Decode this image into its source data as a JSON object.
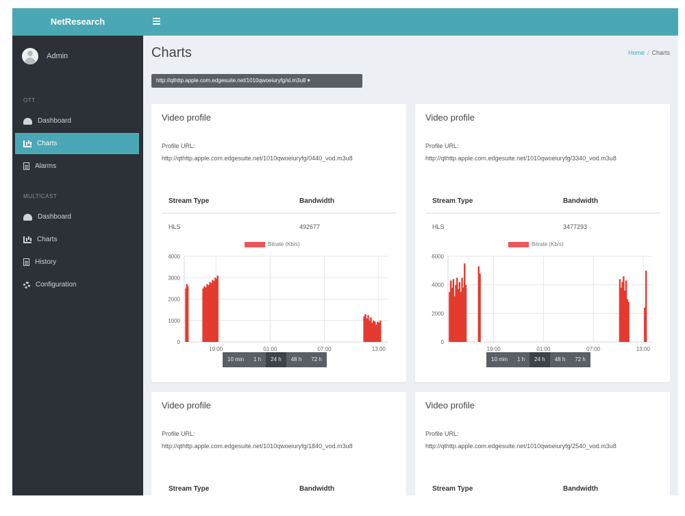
{
  "app": {
    "brand": "NetResearch"
  },
  "user": {
    "name": "Admin"
  },
  "sidebar": {
    "sections": [
      {
        "title": "OTT",
        "items": [
          {
            "label": "Dashboard",
            "icon": "dashboard-icon"
          },
          {
            "label": "Charts",
            "icon": "bar-chart-icon",
            "active": true
          },
          {
            "label": "Alarms",
            "icon": "document-icon"
          }
        ]
      },
      {
        "title": "MULTICAST",
        "items": [
          {
            "label": "Dashboard",
            "icon": "dashboard-icon"
          },
          {
            "label": "Charts",
            "icon": "bar-chart-icon"
          },
          {
            "label": "History",
            "icon": "document-icon"
          },
          {
            "label": "Configuration",
            "icon": "gear-icon"
          }
        ]
      }
    ]
  },
  "header": {
    "menu_icon": "hamburger-icon"
  },
  "page": {
    "title": "Charts",
    "breadcrumb": [
      "Home",
      "Charts"
    ]
  },
  "url_select": {
    "value": "http://qthttp.apple.com.edgesuite.net/1010qwoeiuryfg/sl.m3u8 ▾"
  },
  "colors": {
    "accent": "#4aa7b5",
    "sidebar": "#2c3138",
    "series": "#e53a2f"
  },
  "cards": [
    {
      "title": "Video profile",
      "profile_label": "Profile URL:",
      "profile_url": "http://qthttp.apple.com.edgesuite.net/1010qwoeiuryfg/0440_vod.m3u8",
      "table": {
        "headers": [
          "Stream Type",
          "Bandwidth"
        ],
        "rows": [
          [
            "HLS",
            "492677"
          ]
        ]
      }
    },
    {
      "title": "Video profile",
      "profile_label": "Profile URL:",
      "profile_url": "http://qthttp.apple.com.edgesuite.net/1010qwoeiuryfg/3340_vod.m3u8",
      "table": {
        "headers": [
          "Stream Type",
          "Bandwidth"
        ],
        "rows": [
          [
            "HLS",
            "3477293"
          ]
        ]
      }
    },
    {
      "title": "Video profile",
      "profile_label": "Profile URL:",
      "profile_url": "http://qthttp.apple.com.edgesuite.net/1010qwoeiuryfg/1840_vod.m3u8",
      "table": {
        "headers": [
          "Stream Type",
          "Bandwidth"
        ],
        "rows": []
      }
    },
    {
      "title": "Video profile",
      "profile_label": "Profile URL:",
      "profile_url": "http://qthttp.apple.com.edgesuite.net/1010qwoeiuryfg/2540_vod.m3u8",
      "table": {
        "headers": [
          "Stream Type",
          "Bandwidth"
        ],
        "rows": []
      }
    }
  ],
  "range_buttons": [
    "10 min",
    "1 h",
    "24 h",
    "48 h",
    "72 h"
  ],
  "range_selected": "24 h",
  "chart_data": [
    {
      "type": "bar",
      "legend": [
        "Bitrate (Kb/s)"
      ],
      "legend_position": "top",
      "grid": true,
      "ylim": [
        0,
        4000
      ],
      "yticks": [
        0,
        1000,
        2000,
        3000,
        4000
      ],
      "xticks": [
        {
          "t": 3.5,
          "label": "19:00"
        },
        {
          "t": 9.5,
          "label": "01:00"
        },
        {
          "t": 15.5,
          "label": "07:00"
        },
        {
          "t": 21.5,
          "label": "13:00"
        }
      ],
      "xlim": [
        0,
        22.5
      ],
      "series": [
        {
          "name": "Bitrate (Kb/s)",
          "points": [
            [
              0.1,
              2500
            ],
            [
              0.2,
              2700
            ],
            [
              0.3,
              2600
            ],
            [
              2.0,
              2500
            ],
            [
              2.15,
              2600
            ],
            [
              2.3,
              2550
            ],
            [
              2.45,
              2700
            ],
            [
              2.6,
              2650
            ],
            [
              2.75,
              2800
            ],
            [
              2.9,
              2750
            ],
            [
              3.05,
              2900
            ],
            [
              3.2,
              2850
            ],
            [
              3.35,
              3000
            ],
            [
              3.5,
              2950
            ],
            [
              3.6,
              3100
            ],
            [
              19.8,
              1200
            ],
            [
              19.95,
              1300
            ],
            [
              20.1,
              1100
            ],
            [
              20.25,
              1250
            ],
            [
              20.4,
              1000
            ],
            [
              20.55,
              1150
            ],
            [
              20.7,
              900
            ],
            [
              20.85,
              1000
            ],
            [
              21.0,
              950
            ],
            [
              21.15,
              800
            ],
            [
              21.3,
              950
            ],
            [
              21.45,
              900
            ],
            [
              21.6,
              1000
            ]
          ]
        }
      ]
    },
    {
      "type": "bar",
      "legend": [
        "Bitrate (Kb/s)"
      ],
      "legend_position": "top",
      "grid": true,
      "ylim": [
        0,
        6000
      ],
      "yticks": [
        0,
        2000,
        4000,
        6000
      ],
      "xticks": [
        {
          "t": 5.5,
          "label": "19:00"
        },
        {
          "t": 11.5,
          "label": "01:00"
        },
        {
          "t": 17.5,
          "label": "07:00"
        },
        {
          "t": 23.5,
          "label": "13:00"
        }
      ],
      "xlim": [
        0,
        24.5
      ],
      "series": [
        {
          "name": "Bitrate (Kb/s)",
          "points": [
            [
              0.1,
              3500
            ],
            [
              0.25,
              4300
            ],
            [
              0.4,
              3800
            ],
            [
              0.55,
              4400
            ],
            [
              0.7,
              3200
            ],
            [
              0.85,
              4000
            ],
            [
              1.0,
              4500
            ],
            [
              1.15,
              3700
            ],
            [
              1.3,
              4200
            ],
            [
              1.45,
              3500
            ],
            [
              1.6,
              4500
            ],
            [
              1.75,
              3800
            ],
            [
              1.9,
              5500
            ],
            [
              2.05,
              4000
            ],
            [
              3.6,
              5300
            ],
            [
              3.75,
              4800
            ],
            [
              20.6,
              4400
            ],
            [
              20.75,
              3800
            ],
            [
              20.9,
              4200
            ],
            [
              21.05,
              4600
            ],
            [
              21.2,
              3600
            ],
            [
              21.35,
              4300
            ],
            [
              21.5,
              3000
            ],
            [
              21.65,
              2800
            ],
            [
              23.6,
              2400
            ],
            [
              23.75,
              5000
            ]
          ]
        }
      ]
    }
  ]
}
